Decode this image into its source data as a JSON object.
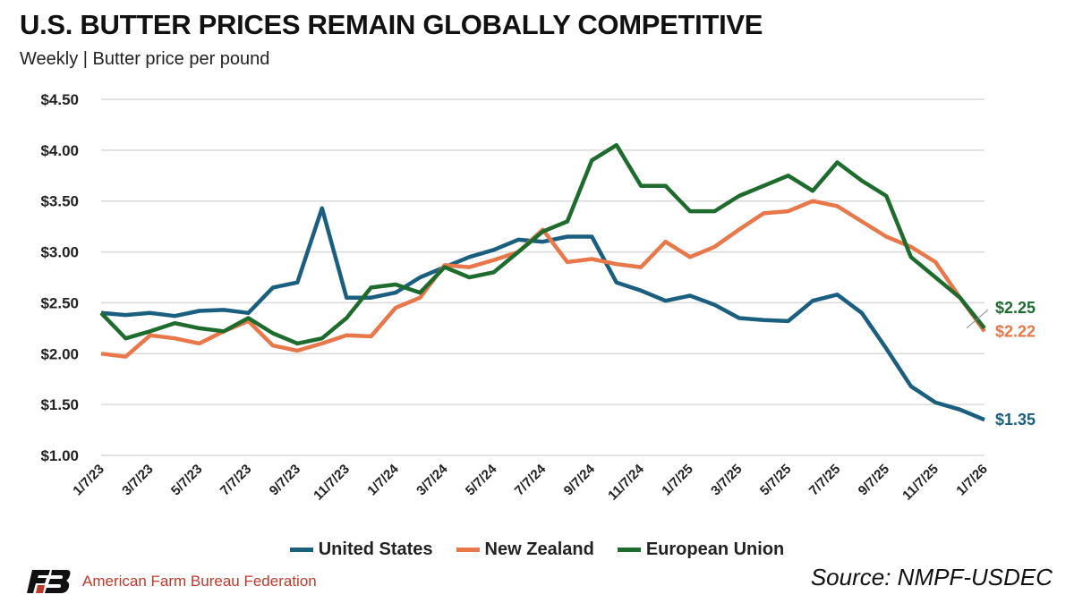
{
  "chart_data": {
    "type": "line",
    "title": "U.S. BUTTER PRICES REMAIN GLOBALLY COMPETITIVE",
    "subtitle": "Weekly | Butter price per pound",
    "xlabel": "",
    "ylabel": "",
    "ylim": [
      1.0,
      4.5
    ],
    "yticks": [
      "$1.00",
      "$1.50",
      "$2.00",
      "$2.50",
      "$3.00",
      "$3.50",
      "$4.00",
      "$4.50"
    ],
    "ytick_values": [
      1.0,
      1.5,
      2.0,
      2.5,
      3.0,
      3.5,
      4.0,
      4.5
    ],
    "xticks": [
      "1/7/23",
      "3/7/23",
      "5/7/23",
      "7/7/23",
      "9/7/23",
      "11/7/23",
      "1/7/24",
      "3/7/24",
      "5/7/24",
      "7/7/24",
      "9/7/24",
      "11/7/24",
      "1/7/25",
      "3/7/25",
      "5/7/25",
      "7/7/25",
      "9/7/25",
      "11/7/25",
      "1/7/26"
    ],
    "x": [
      "1/7/23",
      "2/7/23",
      "3/7/23",
      "4/7/23",
      "5/7/23",
      "6/7/23",
      "7/7/23",
      "8/7/23",
      "9/7/23",
      "10/7/23",
      "11/7/23",
      "12/7/23",
      "1/7/24",
      "2/7/24",
      "3/7/24",
      "4/7/24",
      "5/7/24",
      "6/7/24",
      "7/7/24",
      "8/7/24",
      "9/7/24",
      "10/7/24",
      "11/7/24",
      "12/7/24",
      "1/7/25",
      "2/7/25",
      "3/7/25",
      "4/7/25",
      "5/7/25",
      "6/7/25",
      "7/7/25",
      "8/7/25",
      "9/7/25",
      "10/7/25",
      "11/7/25",
      "12/7/25",
      "1/7/26"
    ],
    "grid": true,
    "legend": "bottom",
    "series": [
      {
        "name": "United States",
        "color": "#1a5f7f",
        "end_label": "$1.35",
        "values": [
          2.4,
          2.38,
          2.4,
          2.37,
          2.42,
          2.43,
          2.4,
          2.65,
          2.7,
          3.43,
          2.55,
          2.55,
          2.6,
          2.75,
          2.85,
          2.95,
          3.02,
          3.12,
          3.1,
          3.15,
          3.15,
          2.7,
          2.62,
          2.52,
          2.57,
          2.48,
          2.35,
          2.33,
          2.32,
          2.52,
          2.58,
          2.4,
          2.05,
          1.68,
          1.52,
          1.45,
          1.35
        ]
      },
      {
        "name": "New Zealand",
        "color": "#e8774a",
        "end_label": "$2.22",
        "values": [
          2.0,
          1.97,
          2.18,
          2.15,
          2.1,
          2.22,
          2.32,
          2.08,
          2.03,
          2.1,
          2.18,
          2.17,
          2.45,
          2.55,
          2.87,
          2.85,
          2.92,
          3.0,
          3.22,
          2.9,
          2.93,
          2.88,
          2.85,
          3.1,
          2.95,
          3.05,
          3.22,
          3.38,
          3.4,
          3.5,
          3.45,
          3.3,
          3.15,
          3.05,
          2.9,
          2.55,
          2.22
        ]
      },
      {
        "name": "European Union",
        "color": "#1e6b2e",
        "end_label": "$2.25",
        "values": [
          2.4,
          2.15,
          2.22,
          2.3,
          2.25,
          2.22,
          2.35,
          2.2,
          2.1,
          2.15,
          2.35,
          2.65,
          2.68,
          2.6,
          2.85,
          2.75,
          2.8,
          3.0,
          3.2,
          3.3,
          3.9,
          4.05,
          3.65,
          3.65,
          3.4,
          3.4,
          3.55,
          3.65,
          3.75,
          3.6,
          3.88,
          3.7,
          3.55,
          2.95,
          2.75,
          2.55,
          2.25
        ]
      }
    ]
  },
  "footer": {
    "organization": "American Farm Bureau Federation",
    "logo_text": "FB",
    "source": "Source: NMPF-USDEC"
  }
}
